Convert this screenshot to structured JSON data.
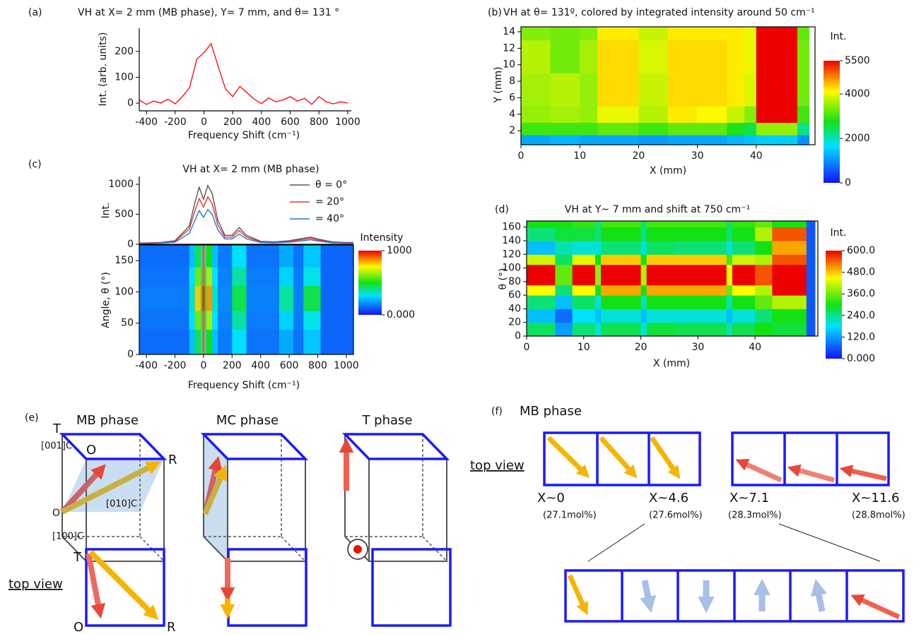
{
  "chart_data": [
    {
      "type": "line",
      "label": "(a)",
      "title": "VH at X= 2 mm (MB phase), Y= 7 mm, and θ= 131 °",
      "xlabel": "Frequency Shift (cm⁻¹)",
      "ylabel": "Int. (arb. units)",
      "x": [
        -450,
        -400,
        -350,
        -300,
        -250,
        -200,
        -150,
        -100,
        -50,
        0,
        50,
        100,
        150,
        200,
        250,
        300,
        350,
        400,
        450,
        500,
        550,
        600,
        650,
        700,
        750,
        800,
        850,
        900,
        950,
        1000
      ],
      "values": [
        12,
        -5,
        8,
        0,
        15,
        -3,
        25,
        60,
        170,
        195,
        230,
        140,
        55,
        25,
        65,
        40,
        15,
        -2,
        20,
        5,
        12,
        25,
        8,
        18,
        -5,
        25,
        5,
        -3,
        5,
        0
      ],
      "color": "#ff0000",
      "xlim": [
        -450,
        1025
      ],
      "ylim": [
        -30,
        290
      ],
      "xticks": [
        -400,
        -200,
        0,
        200,
        400,
        600,
        800,
        1000
      ],
      "yticks": [
        0,
        100,
        200
      ]
    },
    {
      "type": "heatmap",
      "label": "(b)",
      "title": "VH at θ= 131º, colored by integrated intensity around 50 cm⁻¹",
      "xlabel": "X (mm)",
      "ylabel": "Y (mm)",
      "x_edges": [
        0,
        5,
        10,
        13,
        20,
        25,
        30,
        35,
        38,
        40,
        47,
        49
      ],
      "y_edges": [
        0.3,
        1.5,
        3,
        5,
        9,
        13,
        14.6
      ],
      "values": [
        [
          1200,
          1300,
          1200,
          1200,
          1100,
          1200,
          1200,
          1300,
          1400,
          1500,
          1000
        ],
        [
          3000,
          3000,
          3000,
          3200,
          3000,
          3200,
          3200,
          2800,
          2500,
          3500,
          2200
        ],
        [
          3500,
          3600,
          3500,
          4000,
          3700,
          4200,
          4100,
          3800,
          3400,
          5500,
          3000
        ],
        [
          3600,
          3700,
          3500,
          4300,
          3800,
          4300,
          4300,
          4200,
          3900,
          5500,
          3300
        ],
        [
          3700,
          3300,
          3600,
          4300,
          3900,
          4300,
          4300,
          4200,
          4000,
          5500,
          3300
        ],
        [
          3400,
          3300,
          3400,
          4200,
          3800,
          4200,
          4200,
          4200,
          4000,
          5500,
          3200
        ]
      ],
      "xlim": [
        0,
        50
      ],
      "ylim": [
        0.3,
        14.6
      ],
      "xticks": [
        0,
        10,
        20,
        30,
        40
      ],
      "yticks": [
        2,
        4,
        6,
        8,
        10,
        12,
        14
      ],
      "colormap": "jet",
      "zlim": [
        0,
        5500
      ],
      "colorbar_title": "Int.",
      "colorbar_ticks": [
        0,
        2000,
        4000,
        5500
      ]
    },
    {
      "type": "line",
      "label": "(c)",
      "title": "VH at X= 2 mm (MB phase)",
      "ylabel": "Int.",
      "legend": "upper right",
      "x": [
        -450,
        -300,
        -200,
        -100,
        -60,
        -30,
        0,
        30,
        60,
        100,
        150,
        200,
        250,
        300,
        400,
        500,
        600,
        700,
        750,
        800,
        900,
        1000,
        1050
      ],
      "series": [
        {
          "name": "θ =  0°",
          "color": "#555555",
          "values": [
            20,
            30,
            60,
            300,
            700,
            950,
            750,
            980,
            850,
            400,
            150,
            150,
            280,
            150,
            50,
            40,
            60,
            100,
            120,
            90,
            40,
            30,
            30
          ]
        },
        {
          "name": "= 20°",
          "color": "#e8342c",
          "values": [
            15,
            25,
            50,
            250,
            560,
            760,
            620,
            790,
            680,
            320,
            120,
            120,
            230,
            120,
            40,
            30,
            50,
            80,
            100,
            70,
            30,
            25,
            25
          ]
        },
        {
          "name": "= 40°",
          "color": "#2a6fd6",
          "values": [
            10,
            20,
            35,
            180,
            400,
            560,
            450,
            580,
            500,
            240,
            90,
            90,
            170,
            90,
            30,
            25,
            35,
            60,
            75,
            55,
            25,
            20,
            20
          ]
        }
      ],
      "xlim": [
        -450,
        1050
      ],
      "ylim": [
        0,
        1130
      ],
      "yticks": [
        0,
        500,
        1000
      ]
    },
    {
      "type": "heatmap",
      "xlabel": "Frequency Shift (cm⁻¹)",
      "ylabel": "Angle, θ (°)",
      "x_edges": [
        -450,
        -100,
        -60,
        -20,
        -8,
        8,
        20,
        60,
        100,
        200,
        300,
        530,
        630,
        700,
        820,
        1050
      ],
      "y_edges": [
        0,
        40,
        70,
        110,
        140,
        175
      ],
      "values": [
        [
          130,
          250,
          450,
          300,
          900,
          300,
          500,
          250,
          150,
          300,
          140,
          220,
          140,
          260,
          120
        ],
        [
          140,
          300,
          600,
          350,
          900,
          350,
          650,
          300,
          160,
          380,
          150,
          280,
          150,
          320,
          120
        ],
        [
          150,
          350,
          800,
          400,
          950,
          450,
          850,
          350,
          170,
          450,
          160,
          380,
          160,
          450,
          120
        ],
        [
          140,
          300,
          600,
          350,
          900,
          350,
          650,
          300,
          160,
          380,
          150,
          280,
          150,
          320,
          120
        ],
        [
          130,
          250,
          450,
          300,
          900,
          300,
          500,
          250,
          150,
          300,
          140,
          220,
          140,
          260,
          120
        ]
      ],
      "xlim": [
        -450,
        1050
      ],
      "ylim": [
        0,
        175
      ],
      "xticks": [
        -400,
        -200,
        0,
        200,
        400,
        600,
        800,
        1000
      ],
      "yticks": [
        0,
        50,
        100,
        150
      ],
      "colormap": "jet",
      "zlim": [
        0,
        1000
      ],
      "colorbar_title": "Intensity",
      "colorbar_ticks": [
        {
          "value": 0,
          "label": "0.000"
        },
        1000
      ]
    },
    {
      "type": "heatmap",
      "label": "(d)",
      "title": "VH at Y~ 7 mm and shift at 750 cm⁻¹",
      "xlabel": "X (mm)",
      "ylabel": "θ (°)",
      "x_edges": [
        0,
        5,
        8,
        12,
        13,
        20,
        21,
        26,
        35,
        36,
        40,
        43,
        49,
        50.5
      ],
      "y_edges": [
        0,
        20,
        40,
        60,
        75,
        105,
        120,
        140,
        160,
        169
      ],
      "values": [
        [
          260,
          120,
          250,
          200,
          270,
          200,
          280,
          270,
          220,
          270,
          300,
          280,
          60
        ],
        [
          150,
          80,
          180,
          150,
          200,
          150,
          200,
          200,
          150,
          200,
          250,
          300,
          60
        ],
        [
          250,
          150,
          260,
          200,
          300,
          220,
          300,
          300,
          220,
          300,
          350,
          400,
          60
        ],
        [
          450,
          250,
          450,
          300,
          500,
          300,
          500,
          500,
          350,
          450,
          400,
          600,
          60
        ],
        [
          600,
          350,
          600,
          380,
          620,
          400,
          620,
          620,
          450,
          600,
          550,
          600,
          60
        ],
        [
          420,
          260,
          430,
          300,
          480,
          300,
          480,
          480,
          330,
          420,
          400,
          550,
          60
        ],
        [
          150,
          220,
          200,
          200,
          250,
          200,
          260,
          250,
          200,
          250,
          300,
          500,
          60
        ],
        [
          250,
          280,
          280,
          250,
          300,
          240,
          300,
          300,
          250,
          300,
          400,
          550,
          60
        ],
        [
          300,
          300,
          320,
          250,
          330,
          260,
          330,
          330,
          260,
          320,
          350,
          300,
          60
        ]
      ],
      "xlim": [
        0,
        51
      ],
      "ylim": [
        0,
        169
      ],
      "xticks": [
        0,
        10,
        20,
        30,
        40
      ],
      "yticks": [
        0,
        20,
        40,
        60,
        80,
        100,
        120,
        140,
        160
      ],
      "colormap": "jet",
      "zlim": [
        0,
        600
      ],
      "colorbar_title": "Int.",
      "colorbar_ticks": [
        {
          "value": 0,
          "label": "0.000"
        },
        {
          "value": 120,
          "label": "120.0"
        },
        {
          "value": 240,
          "label": "240.0"
        },
        {
          "value": 360,
          "label": "360.0"
        },
        {
          "value": 480,
          "label": "480.0"
        },
        {
          "value": 600,
          "label": "600.0"
        }
      ]
    }
  ],
  "diagram_e": {
    "label": "(e)",
    "phases": [
      "MB phase",
      "MC phase",
      "T phase"
    ],
    "cube_labels": {
      "T": "T",
      "dir001": "[001]C",
      "O_top": "O",
      "R": "R",
      "O_origin": "O",
      "dir010": "[010]C",
      "dir100": "[100]C"
    },
    "top_view": "top view",
    "top_view_labels": [
      "T",
      "O",
      "R"
    ]
  },
  "diagram_f": {
    "label": "(f)",
    "title": "MB phase",
    "top_view": "top view",
    "positions": [
      {
        "x": "X~0",
        "composition": "(27.1mol%)"
      },
      {
        "x": "X~4.6",
        "composition": "(27.6mol%)"
      },
      {
        "x": "X~7.1",
        "composition": "(28.3mol%)"
      },
      {
        "x": "X~11.6",
        "composition": "(28.8mol%)"
      }
    ]
  }
}
